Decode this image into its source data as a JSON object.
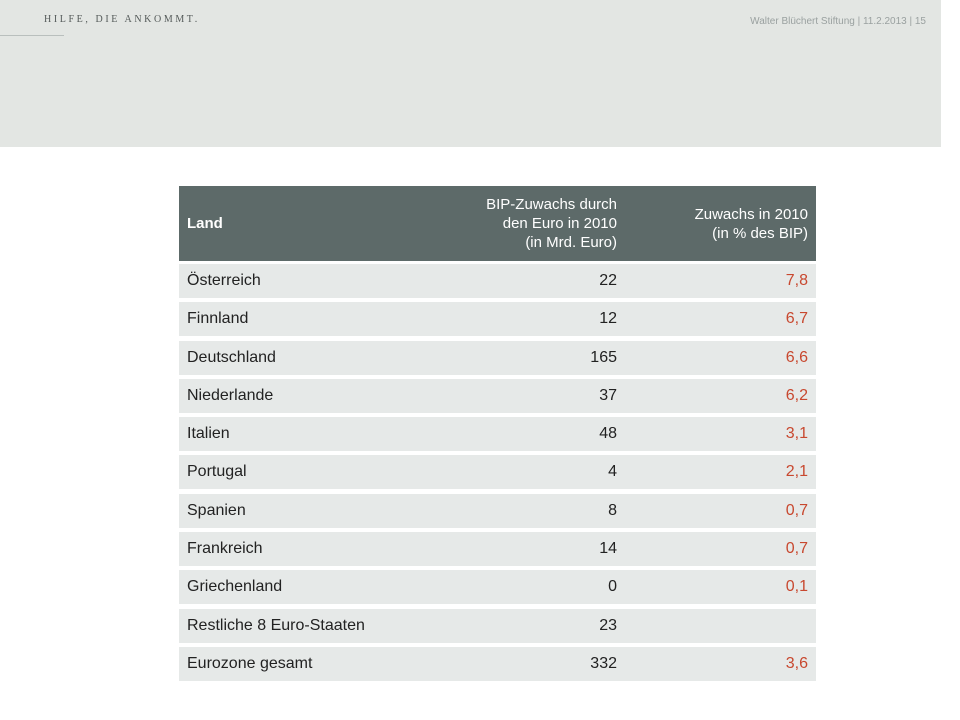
{
  "brand": {
    "slogan": "HILFE, DIE ANKOMMT."
  },
  "meta": {
    "footer": "Walter Blüchert Stiftung | 11.2.2013 | 15"
  },
  "table": {
    "headers": [
      "Land",
      "BIP-Zuwachs durch\nden Euro in 2010\n(in Mrd. Euro)",
      "Zuwachs in 2010\n(in % des BIP)"
    ],
    "rows": [
      {
        "land": "Österreich",
        "bip": "22",
        "pct": "7,8"
      },
      {
        "land": "Finnland",
        "bip": "12",
        "pct": "6,7"
      },
      {
        "land": "Deutschland",
        "bip": "165",
        "pct": "6,6"
      },
      {
        "land": "Niederlande",
        "bip": "37",
        "pct": "6,2"
      },
      {
        "land": "Italien",
        "bip": "48",
        "pct": "3,1"
      },
      {
        "land": "Portugal",
        "bip": "4",
        "pct": "2,1"
      },
      {
        "land": "Spanien",
        "bip": "8",
        "pct": "0,7"
      },
      {
        "land": "Frankreich",
        "bip": "14",
        "pct": "0,7"
      },
      {
        "land": "Griechenland",
        "bip": "0",
        "pct": "0,1"
      },
      {
        "land": "Restliche 8 Euro-Staaten",
        "bip": "23",
        "pct": ""
      },
      {
        "land": "Eurozone gesamt",
        "bip": "332",
        "pct": "3,6"
      }
    ]
  },
  "colors": {
    "header_band": "#e3e6e3",
    "table_header": "#5d6a69",
    "row_bg": "#e6e9e8",
    "accent_value": "#c8482f"
  }
}
